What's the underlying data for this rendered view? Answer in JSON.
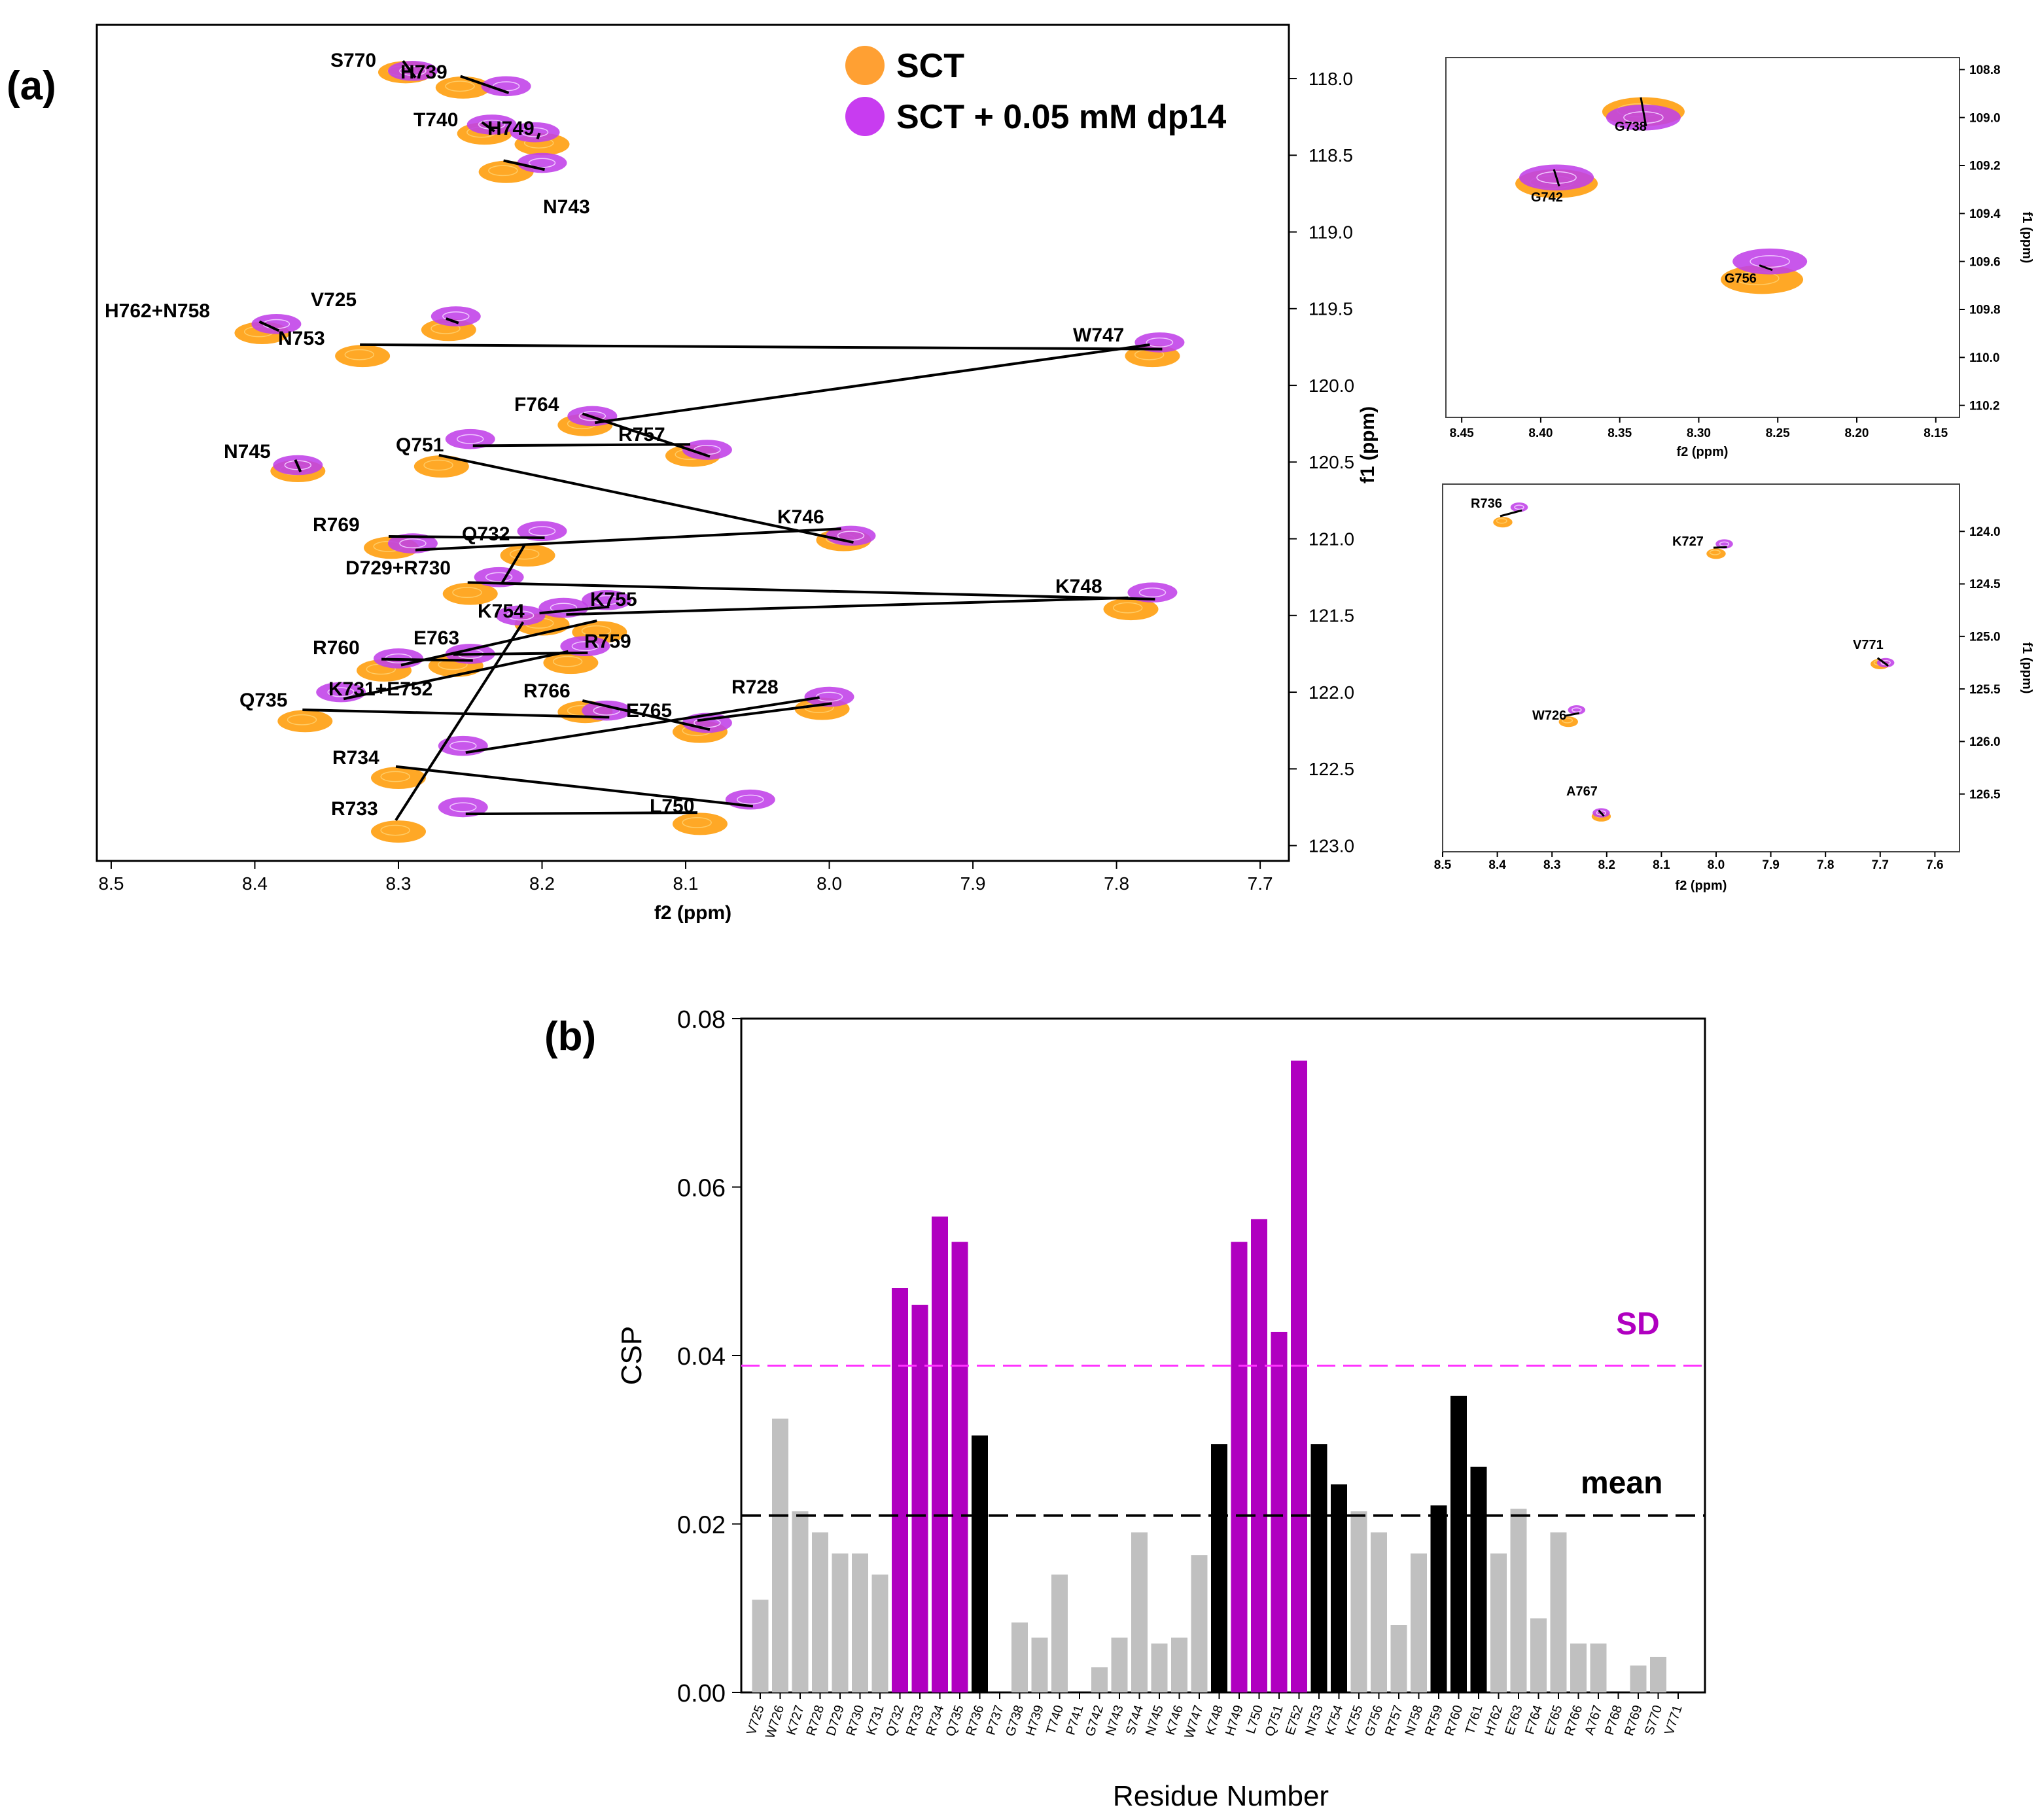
{
  "panel_labels": {
    "a": "(a)",
    "b": "(b)"
  },
  "colors": {
    "sct": "#FF9900",
    "sct_dp14": "#C040E8",
    "peak_fill_sct": "#FFA500",
    "peak_fill_dp14": "#A21CC8",
    "csp_high": "#B000C0",
    "csp_mid": "#000000",
    "csp_low": "#C0C0C0",
    "sd_line": "#FF33FF",
    "mean_line": "#000000"
  },
  "chart_data": [
    {
      "id": "hsqc_main",
      "type": "scatter",
      "title": "",
      "xlabel": "f2 (ppm)",
      "ylabel": "f1 (ppm)",
      "xlim": [
        8.51,
        7.68
      ],
      "ylim": [
        123.1,
        117.65
      ],
      "xticks": [
        "8.5",
        "8.4",
        "8.3",
        "8.2",
        "8.1",
        "8.0",
        "7.9",
        "7.8",
        "7.7"
      ],
      "yticks": [
        "118.0",
        "118.5",
        "119.0",
        "119.5",
        "120.0",
        "120.5",
        "121.0",
        "121.5",
        "122.0",
        "122.5",
        "123.0"
      ],
      "legend": [
        {
          "name": "SCT"
        },
        {
          "name": "SCT + 0.05 mM dp14"
        }
      ],
      "series": [
        {
          "name": "SCT",
          "points": [
            [
              8.295,
              117.95
            ],
            [
              8.255,
              118.05
            ],
            [
              8.24,
              118.35
            ],
            [
              8.2,
              118.42
            ],
            [
              8.225,
              118.6
            ],
            [
              8.395,
              119.65
            ],
            [
              8.265,
              119.63
            ],
            [
              8.325,
              119.8
            ],
            [
              7.775,
              119.8
            ],
            [
              8.17,
              120.25
            ],
            [
              8.095,
              120.45
            ],
            [
              8.37,
              120.55
            ],
            [
              8.27,
              120.52
            ],
            [
              7.99,
              121.0
            ],
            [
              8.305,
              121.05
            ],
            [
              8.21,
              121.1
            ],
            [
              8.25,
              121.35
            ],
            [
              7.79,
              121.45
            ],
            [
              8.2,
              121.55
            ],
            [
              8.16,
              121.6
            ],
            [
              8.31,
              121.85
            ],
            [
              8.26,
              121.82
            ],
            [
              8.18,
              121.8
            ],
            [
              8.365,
              122.18
            ],
            [
              8.17,
              122.12
            ],
            [
              8.09,
              122.25
            ],
            [
              8.005,
              122.1
            ],
            [
              8.3,
              122.55
            ],
            [
              8.09,
              122.85
            ],
            [
              8.3,
              122.9
            ]
          ]
        },
        {
          "name": "SCT + 0.05 mM dp14",
          "points": [
            [
              8.29,
              117.95
            ],
            [
              8.225,
              118.05
            ],
            [
              8.235,
              118.3
            ],
            [
              8.205,
              118.35
            ],
            [
              8.2,
              118.55
            ],
            [
              8.385,
              119.6
            ],
            [
              8.26,
              119.55
            ],
            [
              7.77,
              119.72
            ],
            [
              8.165,
              120.2
            ],
            [
              8.085,
              120.42
            ],
            [
              8.25,
              120.35
            ],
            [
              8.37,
              120.52
            ],
            [
              7.985,
              120.98
            ],
            [
              8.29,
              121.03
            ],
            [
              8.2,
              120.95
            ],
            [
              8.23,
              121.25
            ],
            [
              7.775,
              121.35
            ],
            [
              8.185,
              121.45
            ],
            [
              8.155,
              121.4
            ],
            [
              8.3,
              121.78
            ],
            [
              8.25,
              121.75
            ],
            [
              8.17,
              121.7
            ],
            [
              8.34,
              122.0
            ],
            [
              8.155,
              122.12
            ],
            [
              8.085,
              122.2
            ],
            [
              8.0,
              122.03
            ],
            [
              8.255,
              122.35
            ],
            [
              8.055,
              122.7
            ],
            [
              8.255,
              122.75
            ],
            [
              8.215,
              121.5
            ]
          ]
        }
      ],
      "annotations": [
        "S770",
        "H739",
        "T740",
        "H749",
        "N743",
        "H762+N758",
        "V725",
        "N753",
        "W747",
        "F764",
        "R757",
        "N745",
        "Q751",
        "K746",
        "R769",
        "Q732",
        "D729+R730",
        "K748",
        "K754",
        "K755",
        "R760",
        "E763",
        "R759",
        "K731+E752",
        "R766",
        "E765",
        "R728",
        "Q735",
        "R734",
        "L750",
        "R733"
      ]
    },
    {
      "id": "hsqc_gly",
      "type": "scatter",
      "xlabel": "f2 (ppm)",
      "ylabel": "f1 (ppm)",
      "xlim": [
        8.46,
        8.135
      ],
      "ylim": [
        110.25,
        108.75
      ],
      "xticks": [
        "8.45",
        "8.40",
        "8.35",
        "8.30",
        "8.25",
        "8.20",
        "8.15"
      ],
      "yticks": [
        "108.8",
        "109.0",
        "109.2",
        "109.4",
        "109.6",
        "109.8",
        "110.0",
        "110.2"
      ],
      "series": [
        {
          "name": "SCT",
          "points": [
            [
              8.335,
              108.97
            ],
            [
              8.39,
              109.27
            ],
            [
              8.26,
              109.67
            ]
          ]
        },
        {
          "name": "SCT + 0.05 mM dp14",
          "points": [
            [
              8.335,
              109.0
            ],
            [
              8.39,
              109.25
            ],
            [
              8.255,
              109.6
            ]
          ]
        }
      ],
      "annotations": [
        "G738",
        "G742",
        "G756"
      ]
    },
    {
      "id": "hsqc_misc",
      "type": "scatter",
      "xlabel": "f2 (ppm)",
      "ylabel": "f1 (ppm)",
      "xlim": [
        8.5,
        7.555
      ],
      "ylim": [
        127.05,
        123.55
      ],
      "xticks": [
        "8.5",
        "8.4",
        "8.3",
        "8.2",
        "8.1",
        "8.0",
        "7.9",
        "7.8",
        "7.7",
        "7.6"
      ],
      "yticks": [
        "124.0",
        "124.5",
        "125.0",
        "125.5",
        "126.0",
        "126.5"
      ],
      "series": [
        {
          "name": "SCT",
          "points": [
            [
              8.39,
              123.9
            ],
            [
              8.0,
              124.2
            ],
            [
              7.7,
              125.25
            ],
            [
              8.27,
              125.8
            ],
            [
              8.21,
              126.7
            ]
          ]
        },
        {
          "name": "SCT + 0.05 mM dp14",
          "points": [
            [
              8.36,
              123.77
            ],
            [
              7.985,
              124.12
            ],
            [
              7.69,
              125.25
            ],
            [
              8.255,
              125.7
            ],
            [
              8.21,
              126.68
            ]
          ]
        }
      ],
      "annotations": [
        "R736",
        "K727",
        "V771",
        "W726",
        "A767"
      ]
    },
    {
      "id": "csp_bar",
      "type": "bar",
      "title": "",
      "xlabel": "Residue Number",
      "ylabel": "CSP",
      "ylim": [
        0,
        0.08
      ],
      "yticks": [
        "0.00",
        "0.02",
        "0.04",
        "0.06",
        "0.08"
      ],
      "categories": [
        "V725",
        "W726",
        "K727",
        "R728",
        "D729",
        "R730",
        "K731",
        "Q732",
        "R733",
        "R734",
        "Q735",
        "R736",
        "P737",
        "G738",
        "H739",
        "T740",
        "P741",
        "G742",
        "N743",
        "S744",
        "N745",
        "K746",
        "W747",
        "K748",
        "H749",
        "L750",
        "Q751",
        "E752",
        "N753",
        "K754",
        "K755",
        "G756",
        "R757",
        "N758",
        "R759",
        "R760",
        "T761",
        "H762",
        "E763",
        "F764",
        "E765",
        "R766",
        "A767",
        "P768",
        "R769",
        "S770",
        "V771"
      ],
      "values": [
        0.011,
        0.0325,
        0.0215,
        0.019,
        0.0165,
        0.0165,
        0.014,
        0.048,
        0.046,
        0.0565,
        0.0535,
        0.0305,
        0,
        0.0083,
        0.0065,
        0.014,
        0,
        0.003,
        0.0065,
        0.019,
        0.0058,
        0.0065,
        0.0163,
        0.0295,
        0.0535,
        0.0562,
        0.0428,
        0.075,
        0.0295,
        0.0247,
        0.0215,
        0.019,
        0.008,
        0.0165,
        0.0222,
        0.0352,
        0.0268,
        0.0165,
        0.0218,
        0.0088,
        0.019,
        0.0058,
        0.0058,
        0,
        0.0032,
        0.0042,
        0
      ],
      "classes": [
        "low",
        "low",
        "low",
        "low",
        "low",
        "low",
        "low",
        "high",
        "high",
        "high",
        "high",
        "mid",
        "low",
        "low",
        "low",
        "low",
        "low",
        "low",
        "low",
        "low",
        "low",
        "low",
        "low",
        "mid",
        "high",
        "high",
        "high",
        "high",
        "mid",
        "mid",
        "low",
        "low",
        "low",
        "low",
        "mid",
        "mid",
        "mid",
        "low",
        "low",
        "low",
        "low",
        "low",
        "low",
        "low",
        "low",
        "low",
        "low"
      ],
      "thresholds": {
        "sd_label": "SD",
        "sd_value": 0.0388,
        "mean_label": "mean",
        "mean_value": 0.021
      }
    }
  ]
}
